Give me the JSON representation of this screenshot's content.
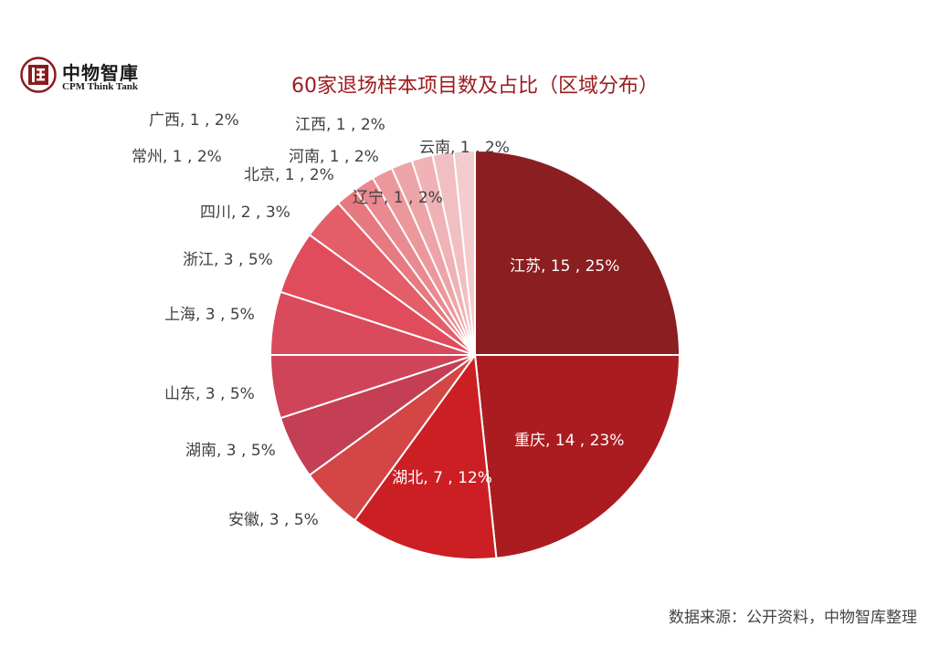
{
  "logo": {
    "name_cn": "中物智庫",
    "name_en": "CPM Think Tank",
    "color": "#8b1a1f"
  },
  "source_note": "数据来源：公开资料，中物智库整理",
  "chart_data": {
    "type": "pie",
    "title": "60家退场样本项目数及占比（区域分布）",
    "total": 60,
    "start_angle_deg": 0,
    "direction": "clockwise",
    "slices": [
      {
        "region": "江苏",
        "count": 15,
        "percent": "25%",
        "label": "江苏, 15 , 25%",
        "color": "#8a1e21",
        "label_inside": true
      },
      {
        "region": "重庆",
        "count": 14,
        "percent": "23%",
        "label": "重庆, 14 , 23%",
        "color": "#ab1c20",
        "label_inside": true
      },
      {
        "region": "湖北",
        "count": 7,
        "percent": "12%",
        "label": "湖北, 7 , 12%",
        "color": "#cc1f24",
        "label_inside": true
      },
      {
        "region": "安徽",
        "count": 3,
        "percent": "5%",
        "label": "安徽, 3 , 5%",
        "color": "#d44545",
        "label_inside": false
      },
      {
        "region": "湖南",
        "count": 3,
        "percent": "5%",
        "label": "湖南, 3 , 5%",
        "color": "#c43f54",
        "label_inside": false
      },
      {
        "region": "山东",
        "count": 3,
        "percent": "5%",
        "label": "山东, 3 , 5%",
        "color": "#cf4458",
        "label_inside": false
      },
      {
        "region": "上海",
        "count": 3,
        "percent": "5%",
        "label": "上海, 3 , 5%",
        "color": "#d94a5c",
        "label_inside": false
      },
      {
        "region": "浙江",
        "count": 3,
        "percent": "5%",
        "label": "浙江, 3 , 5%",
        "color": "#e04c5c",
        "label_inside": false
      },
      {
        "region": "四川",
        "count": 2,
        "percent": "3%",
        "label": "四川, 2 , 3%",
        "color": "#e35e68",
        "label_inside": false
      },
      {
        "region": "北京",
        "count": 1,
        "percent": "2%",
        "label": "北京, 1 , 2%",
        "color": "#e67a80",
        "label_inside": false
      },
      {
        "region": "常州",
        "count": 1,
        "percent": "2%",
        "label": "常州, 1 , 2%",
        "color": "#e98990",
        "label_inside": false
      },
      {
        "region": "广西",
        "count": 1,
        "percent": "2%",
        "label": "广西, 1 , 2%",
        "color": "#eb979c",
        "label_inside": false
      },
      {
        "region": "江西",
        "count": 1,
        "percent": "2%",
        "label": "江西, 1 , 2%",
        "color": "#eda4a8",
        "label_inside": false
      },
      {
        "region": "河南",
        "count": 1,
        "percent": "2%",
        "label": "河南, 1 , 2%",
        "color": "#efb2b5",
        "label_inside": false
      },
      {
        "region": "辽宁",
        "count": 1,
        "percent": "2%",
        "label": "辽宁, 1 , 2%",
        "color": "#f1bfc1",
        "label_inside": false
      },
      {
        "region": "云南",
        "count": 1,
        "percent": "2%",
        "label": "云南, 1 , 2%",
        "color": "#f3cccd",
        "label_inside": false
      }
    ]
  }
}
